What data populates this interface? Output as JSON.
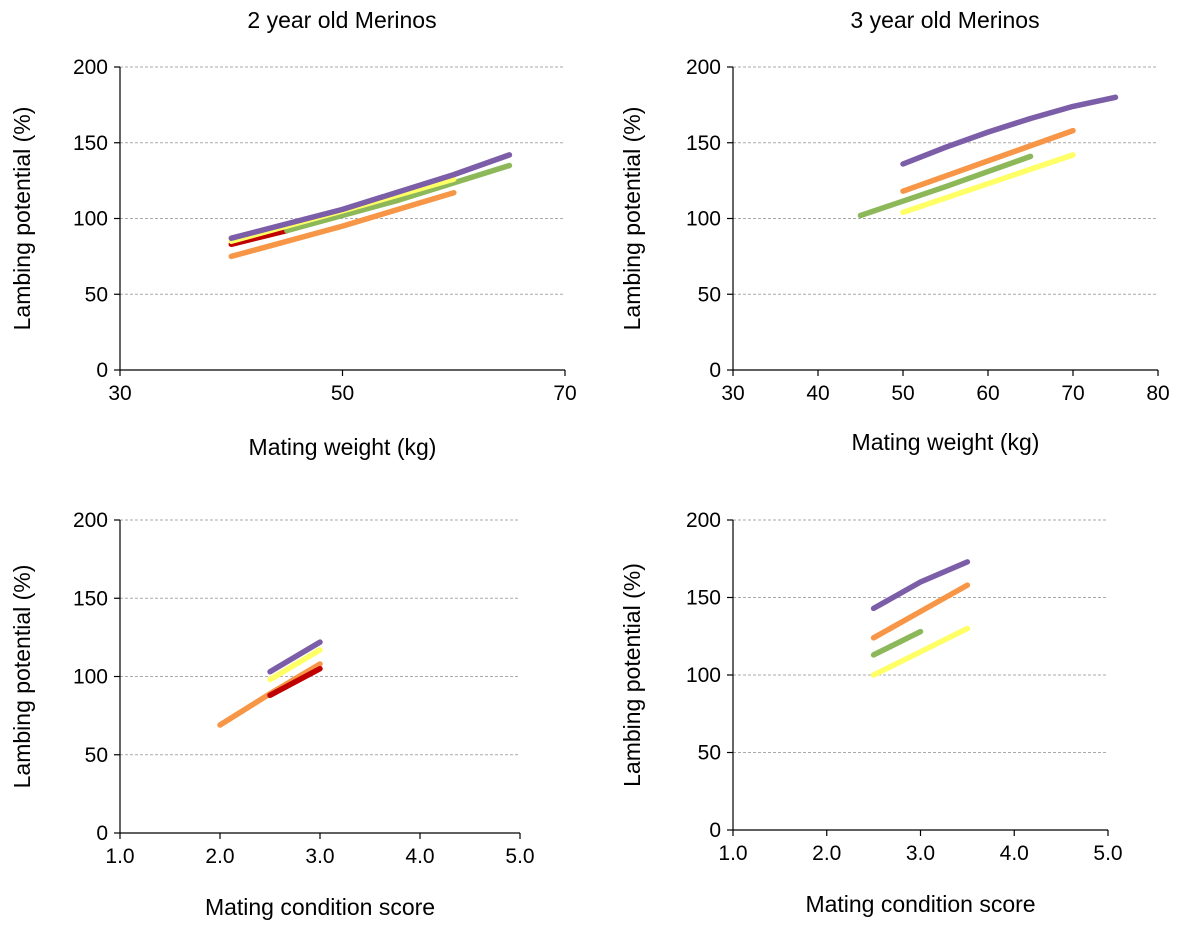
{
  "column_titles": [
    "2 year old Merinos",
    "3 year old Merinos"
  ],
  "colors": {
    "purple": "#7b5ea7",
    "orange": "#f79646",
    "yellow": "#ffff66",
    "green": "#8db85a",
    "red": "#c00000",
    "grid": "#aaaaaa",
    "axis": "#000000"
  },
  "chart_data": [
    {
      "type": "line",
      "title": "2 year old Merinos",
      "xlabel": "Mating weight (kg)",
      "ylabel": "Lambing potential (%)",
      "xlim": [
        30,
        70
      ],
      "ylim": [
        0,
        200
      ],
      "xticks": [
        "30",
        "50",
        "70"
      ],
      "yticks": [
        "0",
        "50",
        "100",
        "150",
        "200"
      ],
      "grid": true,
      "series": [
        {
          "color": "red",
          "x": [
            40,
            45
          ],
          "y": [
            83,
            92
          ]
        },
        {
          "color": "orange",
          "x": [
            40,
            50,
            60
          ],
          "y": [
            75,
            95,
            117
          ]
        },
        {
          "color": "green",
          "x": [
            45,
            55,
            65
          ],
          "y": [
            92,
            112,
            135
          ]
        },
        {
          "color": "yellow",
          "x": [
            40,
            50,
            60
          ],
          "y": [
            85,
            105,
            126
          ]
        },
        {
          "color": "purple",
          "x": [
            40,
            50,
            60,
            65
          ],
          "y": [
            87,
            106,
            129,
            142
          ]
        }
      ]
    },
    {
      "type": "line",
      "title": "3 year old Merinos",
      "xlabel": "Mating weight (kg)",
      "ylabel": "Lambing potential (%)",
      "xlim": [
        30,
        80
      ],
      "ylim": [
        0,
        200
      ],
      "xticks": [
        "30",
        "40",
        "50",
        "60",
        "70",
        "80"
      ],
      "yticks": [
        "0",
        "50",
        "100",
        "150",
        "200"
      ],
      "grid": true,
      "series": [
        {
          "color": "yellow",
          "x": [
            50,
            60,
            70
          ],
          "y": [
            104,
            123,
            142
          ]
        },
        {
          "color": "green",
          "x": [
            45,
            55,
            65
          ],
          "y": [
            102,
            121,
            141
          ]
        },
        {
          "color": "orange",
          "x": [
            50,
            60,
            70
          ],
          "y": [
            118,
            138,
            158
          ]
        },
        {
          "color": "purple",
          "x": [
            50,
            55,
            60,
            65,
            70,
            75
          ],
          "y": [
            136,
            147,
            157,
            166,
            174,
            180
          ]
        }
      ]
    },
    {
      "type": "line",
      "title": "",
      "xlabel": "Mating condition score",
      "ylabel": "Lambing potential (%)",
      "xlim": [
        1.0,
        5.0
      ],
      "ylim": [
        0,
        200
      ],
      "xticks": [
        "1.0",
        "2.0",
        "3.0",
        "4.0",
        "5.0"
      ],
      "yticks": [
        "0",
        "50",
        "100",
        "150",
        "200"
      ],
      "grid": true,
      "series": [
        {
          "color": "orange",
          "x": [
            2.0,
            2.5,
            3.0
          ],
          "y": [
            69,
            89,
            108
          ]
        },
        {
          "color": "red",
          "x": [
            2.5,
            3.0
          ],
          "y": [
            88,
            105
          ]
        },
        {
          "color": "yellow",
          "x": [
            2.5,
            3.0
          ],
          "y": [
            98,
            117
          ]
        },
        {
          "color": "purple",
          "x": [
            2.5,
            3.0
          ],
          "y": [
            103,
            122
          ]
        }
      ]
    },
    {
      "type": "line",
      "title": "",
      "xlabel": "Mating condition score",
      "ylabel": "Lambing potential (%)",
      "xlim": [
        1.0,
        5.0
      ],
      "ylim": [
        0,
        200
      ],
      "xticks": [
        "1.0",
        "2.0",
        "3.0",
        "4.0",
        "5.0"
      ],
      "yticks": [
        "0",
        "50",
        "100",
        "150",
        "200"
      ],
      "grid": true,
      "series": [
        {
          "color": "yellow",
          "x": [
            2.5,
            3.0,
            3.5
          ],
          "y": [
            100,
            115,
            130
          ]
        },
        {
          "color": "green",
          "x": [
            2.5,
            3.0
          ],
          "y": [
            113,
            128
          ]
        },
        {
          "color": "orange",
          "x": [
            2.5,
            3.0,
            3.5
          ],
          "y": [
            124,
            141,
            158
          ]
        },
        {
          "color": "purple",
          "x": [
            2.5,
            3.0,
            3.5
          ],
          "y": [
            143,
            160,
            173
          ]
        }
      ]
    }
  ]
}
